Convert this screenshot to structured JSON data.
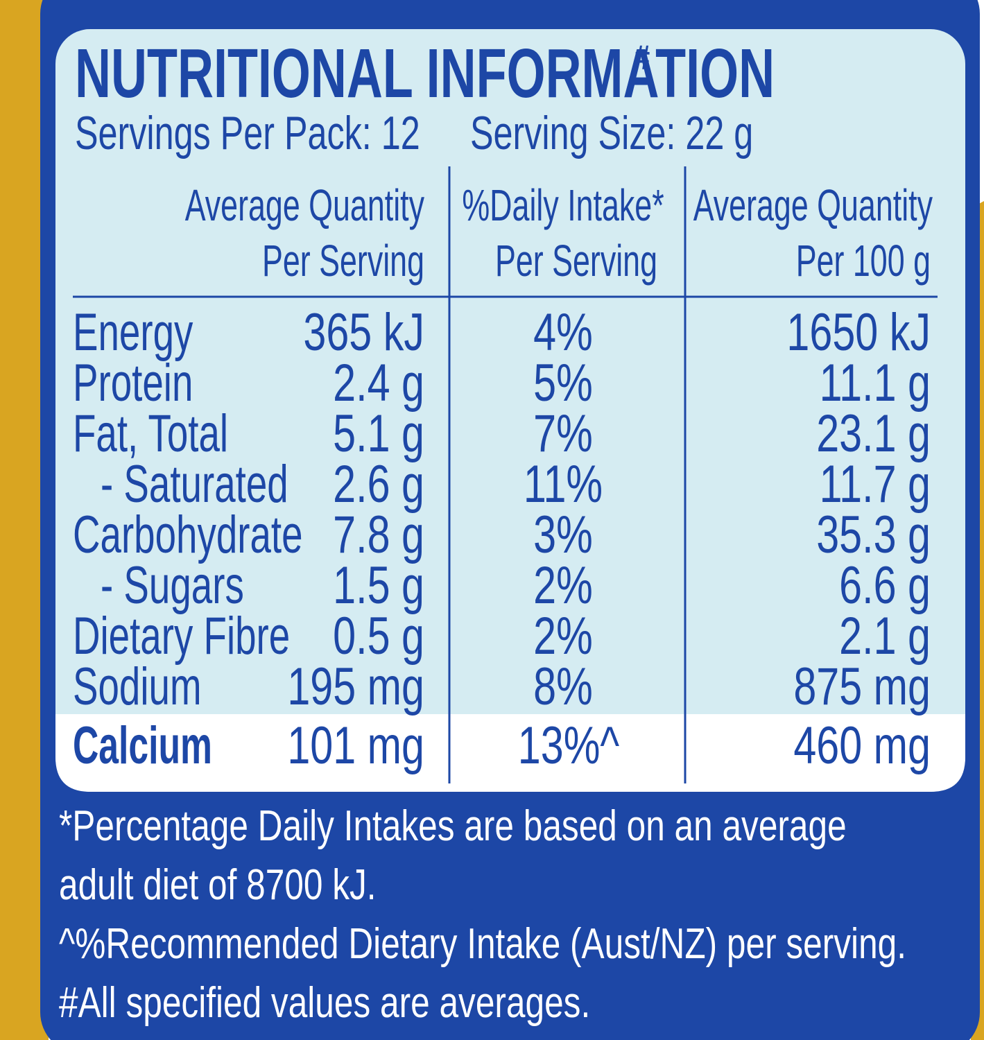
{
  "header": {
    "title": "NUTRITIONAL INFORMATION",
    "title_mark": "#",
    "servings_per_pack": "Servings Per Pack: 12",
    "serving_size": "Serving Size: 22 g"
  },
  "table": {
    "headers": [
      [
        "Average Quantity",
        "Per Serving"
      ],
      [
        "%Daily Intake*",
        "Per Serving"
      ],
      [
        "Average Quantity",
        "Per 100 g"
      ]
    ],
    "rows": [
      [
        "Energy",
        "365 kJ",
        "4%",
        "1650 kJ"
      ],
      [
        "Protein",
        "2.4 g",
        "5%",
        "11.1 g"
      ],
      [
        "Fat, Total",
        "5.1 g",
        "7%",
        "23.1 g"
      ],
      [
        "- Saturated",
        "2.6 g",
        "11%",
        "11.7 g"
      ],
      [
        "Carbohydrate",
        "7.8 g",
        "3%",
        "35.3 g"
      ],
      [
        "- Sugars",
        "1.5 g",
        "2%",
        "6.6 g"
      ],
      [
        "Dietary Fibre",
        "0.5 g",
        "2%",
        "2.1 g"
      ],
      [
        "Sodium",
        "195 mg",
        "8%",
        "875 mg"
      ],
      [
        "Calcium",
        "101 mg",
        "13%^",
        "460 mg"
      ]
    ]
  },
  "footnotes": [
    "*Percentage Daily Intakes are based on an average",
    "adult diet of 8700 kJ.",
    "^%Recommended Dietary Intake (Aust/NZ) per serving.",
    "#All specified values are averages."
  ]
}
